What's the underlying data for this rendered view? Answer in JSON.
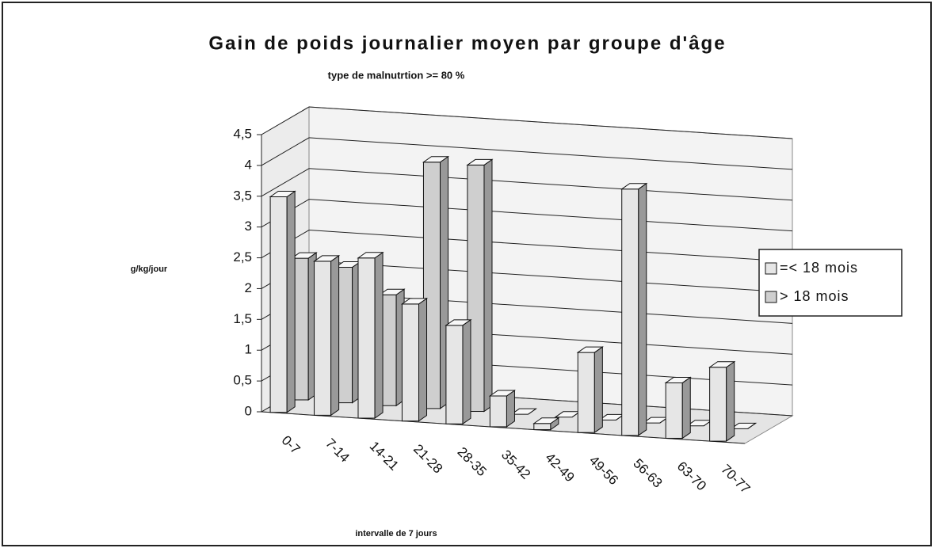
{
  "chart_data": {
    "type": "bar3d",
    "title": "Gain de poids journalier moyen par groupe d'âge",
    "subtitle": "type de malnutrtion >= 80 %",
    "ylabel": "g/kg/jour",
    "xlabel": "intervalle de 7 jours",
    "categories": [
      "0-7",
      "7-14",
      "14-21",
      "21-28",
      "28-35",
      "35-42",
      "42-49",
      "49-56",
      "56-63",
      "63-70",
      "70-77"
    ],
    "series": [
      {
        "name": "=< 18 mois",
        "color": "#e6e6e6",
        "values": [
          3.5,
          2.5,
          2.6,
          1.9,
          1.6,
          0.5,
          0.1,
          1.3,
          4.0,
          0.9,
          1.2
        ]
      },
      {
        "name": "> 18 mois",
        "color": "#cfcfcf",
        "values": [
          2.3,
          2.2,
          1.8,
          4.0,
          4.0,
          0,
          0,
          0,
          0,
          0,
          0
        ]
      }
    ],
    "ylim": [
      0,
      4.5
    ],
    "yticks": [
      0,
      {
        "value": 0.5,
        "label": "0,5"
      },
      1,
      {
        "value": 1.5,
        "label": "1,5"
      },
      2,
      {
        "value": 2.5,
        "label": "2,5"
      },
      3,
      {
        "value": 3.5,
        "label": "3,5"
      },
      4,
      {
        "value": 4.5,
        "label": "4,5"
      }
    ],
    "grid": true,
    "legend": "right"
  }
}
